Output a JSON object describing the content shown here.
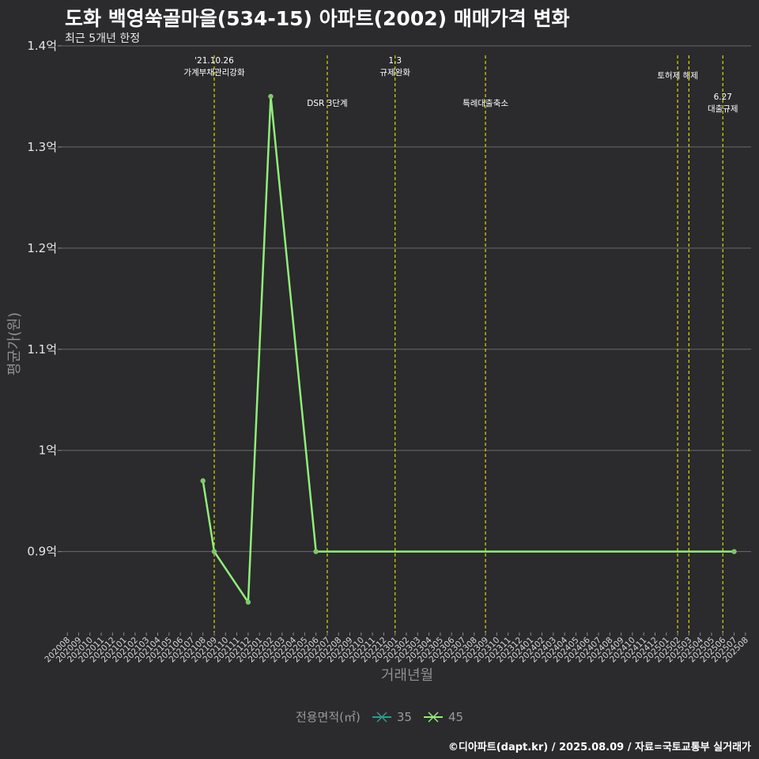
{
  "header": {
    "title": "도화 백영쑥골마을(534-15) 아파트(2002) 매매가격 변화",
    "subtitle": "최근 5개년 한정"
  },
  "caption": "©디아파트(dapt.kr) / 2025.08.09 / 자료=국토교통부 실거래가",
  "legend": {
    "title": "전용면적(㎡)",
    "items": [
      {
        "label": "35",
        "color": "#2a9d8f"
      },
      {
        "label": "45",
        "color": "#90ee7a"
      }
    ]
  },
  "chart_data": {
    "type": "line",
    "xlabel": "거래년월",
    "ylabel": "평균가(원)",
    "ylim": [
      0.82,
      1.4
    ],
    "y_ticks": [
      {
        "value": 0.9,
        "label": "0.9억"
      },
      {
        "value": 1.0,
        "label": "1억"
      },
      {
        "value": 1.1,
        "label": "1.1억"
      },
      {
        "value": 1.2,
        "label": "1.2억"
      },
      {
        "value": 1.3,
        "label": "1.3억"
      },
      {
        "value": 1.4,
        "label": "1.4억"
      }
    ],
    "x_categories": [
      "202008",
      "202009",
      "202010",
      "202011",
      "202012",
      "202101",
      "202102",
      "202103",
      "202104",
      "202105",
      "202106",
      "202107",
      "202108",
      "202109",
      "202110",
      "202111",
      "202112",
      "202201",
      "202202",
      "202203",
      "202204",
      "202205",
      "202206",
      "202207",
      "202208",
      "202209",
      "202210",
      "202211",
      "202212",
      "202301",
      "202302",
      "202303",
      "202304",
      "202305",
      "202306",
      "202307",
      "202308",
      "202309",
      "202310",
      "202311",
      "202312",
      "202401",
      "202402",
      "202403",
      "202404",
      "202405",
      "202406",
      "202407",
      "202408",
      "202409",
      "202410",
      "202411",
      "202412",
      "202501",
      "202502",
      "202503",
      "202504",
      "202505",
      "202506",
      "202507",
      "202508"
    ],
    "series": [
      {
        "name": "45",
        "color": "#90ee7a",
        "points": [
          {
            "x": "202108",
            "y": 0.97
          },
          {
            "x": "202109",
            "y": 0.9
          },
          {
            "x": "202112",
            "y": 0.85
          },
          {
            "x": "202202",
            "y": 1.35
          },
          {
            "x": "202206",
            "y": 0.9
          },
          {
            "x": "202507",
            "y": 0.9
          }
        ]
      }
    ],
    "events": [
      {
        "x": "202109",
        "label": [
          "'21.10.26",
          "가계부채관리강화"
        ],
        "row": 0
      },
      {
        "x": "202207",
        "label": [
          "DSR 3단계"
        ],
        "row": 1
      },
      {
        "x": "202301",
        "label": [
          "1.3",
          "규제완화"
        ],
        "row": 0
      },
      {
        "x": "202309",
        "label": [
          "특례대출축소"
        ],
        "row": 1
      },
      {
        "x": "202502",
        "label": [
          "토허제 해제"
        ],
        "row": 2
      },
      {
        "x": "202503",
        "label": [],
        "row": 2
      },
      {
        "x": "202506",
        "label": [
          "6.27",
          "대출규제"
        ],
        "row": 3
      }
    ]
  }
}
